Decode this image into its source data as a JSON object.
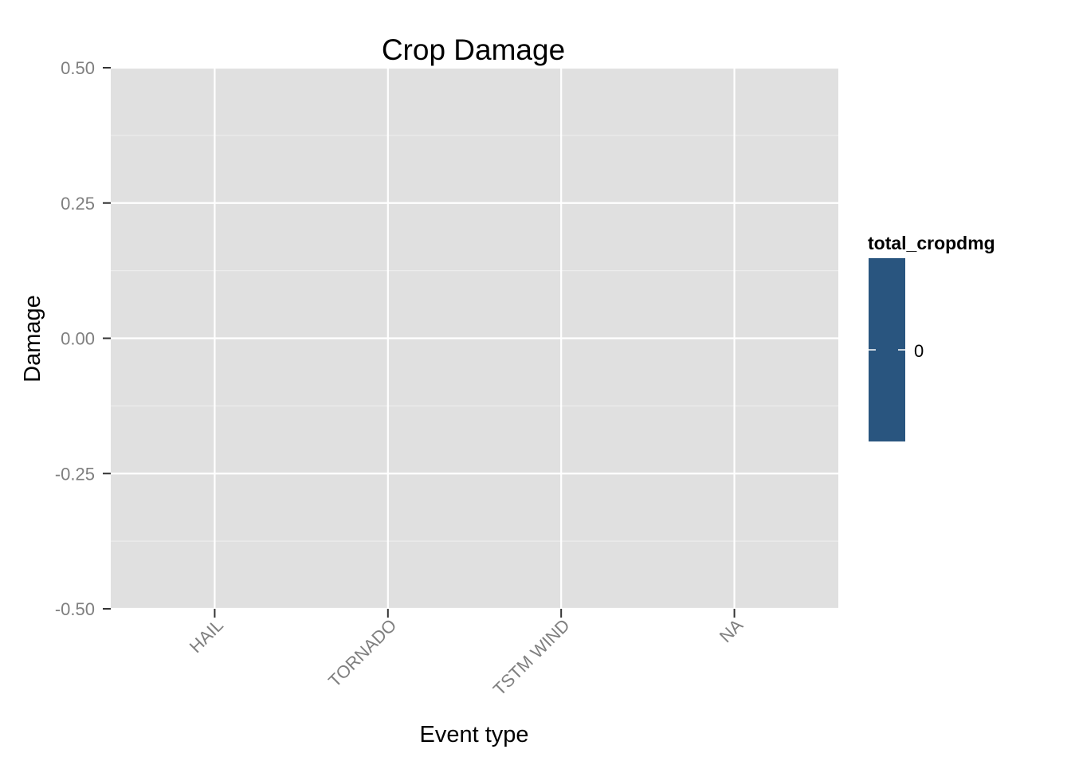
{
  "chart_data": {
    "type": "bar",
    "title": "Crop Damage",
    "xlabel": "Event type",
    "ylabel": "Damage",
    "categories": [
      "HAIL",
      "TORNADO",
      "TSTM WIND",
      "NA"
    ],
    "values": [
      0,
      0,
      0,
      0
    ],
    "ylim": [
      -0.5,
      0.5
    ],
    "y_ticks": [
      -0.5,
      -0.25,
      0,
      0.25,
      0.5
    ],
    "y_tick_labels": [
      "-0.50",
      "-0.25",
      "0.00",
      "0.25",
      "0.50"
    ],
    "grid": true,
    "legend": {
      "title": "total_cropdmg",
      "position": "right",
      "labels": [
        "0"
      ],
      "color": "#29557f"
    },
    "colors": {
      "panel_background": "#e0e0e0",
      "grid_major": "#ffffff",
      "grid_minor": "#ececec",
      "tick_text": "#7f7f7f"
    }
  }
}
